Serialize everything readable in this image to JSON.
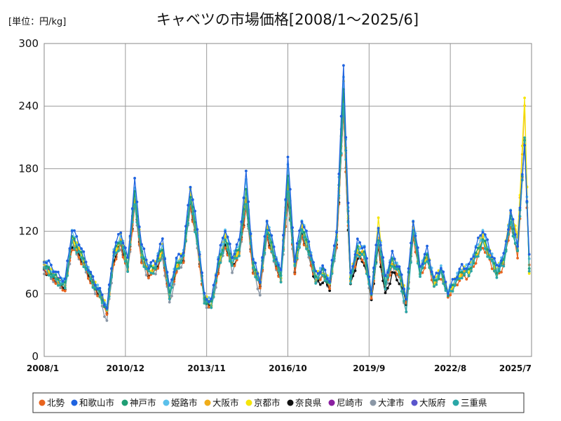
{
  "chart_data": {
    "type": "line",
    "title": "キャベツの市場価格[2008/1～2025/6]",
    "unit_label": "[単位：円/kg]",
    "ylim": [
      0,
      300
    ],
    "yticks": [
      0,
      60,
      120,
      180,
      240,
      300
    ],
    "x_tick_labels": [
      "2008/1",
      "2010/12",
      "2013/11",
      "2016/10",
      "2019/9",
      "2022/8",
      "2025/7"
    ],
    "x_tick_dates": [
      "2008-01",
      "2010-12",
      "2013-11",
      "2016-10",
      "2019-09",
      "2022-08",
      "2025-07"
    ],
    "grid": true,
    "legend_position": "bottom",
    "colors": {
      "北勢": "#e8641e",
      "和歌山市": "#1f63e0",
      "神戸市": "#1f9e74",
      "姫路市": "#5bc0eb",
      "大阪市": "#f0ad1a",
      "京都市": "#f5e50a",
      "奈良県": "#111111",
      "尼崎市": "#8a1fa0",
      "大津市": "#8a97a6",
      "大阪府": "#5a55cc",
      "三重県": "#2aa7a7"
    },
    "baseline": {
      "x": [
        "2008-01",
        "2008-04",
        "2008-07",
        "2008-10",
        "2009-01",
        "2009-04",
        "2009-07",
        "2009-10",
        "2010-01",
        "2010-04",
        "2010-07",
        "2010-10",
        "2011-01",
        "2011-04",
        "2011-07",
        "2011-10",
        "2012-01",
        "2012-04",
        "2012-07",
        "2012-10",
        "2013-01",
        "2013-04",
        "2013-07",
        "2013-10",
        "2014-01",
        "2014-04",
        "2014-07",
        "2014-10",
        "2015-01",
        "2015-04",
        "2015-07",
        "2015-10",
        "2016-01",
        "2016-04",
        "2016-07",
        "2016-10",
        "2017-01",
        "2017-04",
        "2017-07",
        "2017-10",
        "2018-01",
        "2018-04",
        "2018-07",
        "2018-10",
        "2019-01",
        "2019-04",
        "2019-07",
        "2019-10",
        "2020-01",
        "2020-04",
        "2020-07",
        "2020-10",
        "2021-01",
        "2021-04",
        "2021-07",
        "2021-10",
        "2022-01",
        "2022-04",
        "2022-07",
        "2022-10",
        "2023-01",
        "2023-04",
        "2023-07",
        "2023-10",
        "2024-01",
        "2024-04",
        "2024-07",
        "2024-10",
        "2025-01",
        "2025-04",
        "2025-06"
      ],
      "y": [
        85,
        80,
        72,
        68,
        110,
        100,
        85,
        70,
        60,
        45,
        95,
        110,
        85,
        150,
        95,
        80,
        85,
        100,
        60,
        85,
        95,
        150,
        110,
        55,
        50,
        85,
        110,
        88,
        100,
        150,
        85,
        70,
        120,
        95,
        75,
        160,
        85,
        120,
        100,
        75,
        80,
        70,
        110,
        245,
        75,
        100,
        95,
        60,
        110,
        70,
        90,
        80,
        55,
        120,
        80,
        95,
        70,
        80,
        60,
        70,
        80,
        80,
        95,
        110,
        95,
        80,
        90,
        130,
        100,
        210,
        90
      ]
    },
    "series": [
      {
        "name": "北勢",
        "offsets": [
          0,
          -3,
          -2,
          -4,
          -5,
          -4,
          -3,
          -3,
          -2,
          -2,
          -5,
          -4,
          -3,
          -6,
          -3,
          -2,
          -2,
          -4,
          -1,
          -3,
          -2,
          -5,
          -4,
          -2,
          -1,
          -3,
          -4,
          -2,
          -3,
          -8,
          -3,
          -2,
          -5,
          -3,
          -2,
          -6,
          -3,
          -4,
          -3,
          -2,
          -2,
          -2,
          -4,
          -12,
          -2,
          -3,
          -3,
          -2,
          -4,
          -2,
          -3,
          -2,
          -1,
          -4,
          -3,
          -3,
          -2,
          -3,
          -2,
          -2,
          -3,
          -3,
          -3,
          -4,
          -3,
          -3,
          -3,
          -4,
          -3,
          -6,
          -3
        ],
        "start": 0,
        "end": 70
      },
      {
        "name": "和歌山市",
        "offsets": [
          8,
          7,
          6,
          5,
          12,
          10,
          6,
          4,
          3,
          2,
          8,
          10,
          8,
          18,
          12,
          7,
          6,
          12,
          5,
          8,
          6,
          15,
          12,
          3,
          3,
          9,
          13,
          8,
          10,
          25,
          8,
          4,
          12,
          9,
          5,
          30,
          8,
          12,
          10,
          4,
          5,
          3,
          12,
          35,
          3,
          10,
          10,
          3,
          15,
          6,
          8,
          5,
          2,
          12,
          6,
          8,
          4,
          6,
          3,
          5,
          6,
          6,
          10,
          12,
          8,
          6,
          6,
          9,
          8,
          -5,
          5
        ],
        "start": 0,
        "end": 70
      },
      {
        "name": "神戸市",
        "offsets": [
          2,
          1,
          1,
          0,
          4,
          3,
          2,
          1,
          0,
          0,
          3,
          3,
          2,
          6,
          3,
          2,
          2,
          4,
          0,
          2,
          1,
          5,
          3,
          0,
          0,
          2,
          3,
          2,
          3,
          8,
          2,
          1,
          4,
          3,
          1,
          10,
          2,
          4,
          3,
          1,
          1,
          0,
          3,
          14,
          0,
          3,
          3,
          0,
          4,
          1,
          2,
          1,
          0,
          3,
          1,
          2,
          0,
          1,
          0,
          1,
          1,
          1,
          2,
          3,
          2,
          1,
          1,
          2,
          1,
          0,
          -8
        ],
        "start": 0,
        "end": 70
      },
      {
        "name": "姫路市",
        "offsets": [
          5,
          4,
          3,
          3,
          8,
          6,
          4,
          3,
          2,
          1,
          6,
          7,
          5,
          12,
          8,
          5,
          4,
          9,
          3,
          6,
          4,
          12,
          9,
          2,
          2,
          7,
          10,
          6,
          8,
          20,
          6,
          3,
          10,
          7,
          4,
          22,
          6,
          10,
          8,
          3,
          4,
          2,
          9,
          25,
          2,
          8,
          8,
          2,
          12,
          5,
          6,
          4,
          1,
          10,
          5,
          6,
          3,
          4,
          2,
          4,
          5,
          5,
          8,
          9,
          6,
          5,
          5,
          8,
          6,
          -4,
          4
        ],
        "start": 0,
        "end": 70
      },
      {
        "name": "大阪市",
        "offsets": [
          1,
          0,
          0,
          -1,
          2,
          1,
          0,
          0,
          -1,
          -1,
          1,
          1,
          0,
          3,
          1,
          0,
          0,
          2,
          -1,
          1,
          0,
          3,
          2,
          -1,
          -1,
          1,
          2,
          1,
          1,
          4,
          1,
          0,
          2,
          1,
          0,
          5,
          1,
          2,
          1,
          0,
          0,
          0,
          2,
          6,
          0,
          1,
          1,
          0,
          2,
          0,
          1,
          0,
          -1,
          2,
          0,
          1,
          0,
          0,
          -1,
          0,
          0,
          0,
          1,
          2,
          1,
          0,
          3,
          8,
          12,
          28,
          -6
        ],
        "start": 0,
        "end": 70
      },
      {
        "name": "京都市",
        "offsets": [
          3,
          2,
          2,
          1,
          5,
          4,
          3,
          2,
          1,
          1,
          4,
          5,
          3,
          9,
          5,
          3,
          3,
          6,
          2,
          4,
          3,
          8,
          6,
          1,
          1,
          4,
          6,
          4,
          5,
          12,
          4,
          2,
          6,
          4,
          2,
          14,
          4,
          6,
          5,
          2,
          2,
          1,
          5,
          16,
          1,
          5,
          5,
          1,
          20,
          3,
          4,
          3,
          1,
          6,
          3,
          4,
          2,
          3,
          1,
          2,
          3,
          3,
          5,
          6,
          4,
          3,
          4,
          9,
          14,
          35,
          -8
        ],
        "start": 0,
        "end": 70
      },
      {
        "name": "奈良県",
        "offsets": [
          -2,
          -2,
          -1,
          -2,
          -3,
          -2,
          -1,
          -1,
          -1,
          -1,
          -2,
          -2,
          -1,
          -4,
          -2,
          -1,
          -1,
          -2,
          0,
          -1,
          -1,
          -3,
          -2,
          -1,
          0,
          -2,
          -2,
          -1,
          -2,
          -6,
          -2,
          -1,
          -3,
          -2,
          -1,
          -8,
          -2,
          -3,
          -2,
          -5,
          -8,
          -4,
          -2,
          -10,
          -8,
          -6,
          -5,
          -4,
          -6,
          -12,
          -10,
          -8,
          -3,
          -6,
          -4,
          -3,
          -6,
          -5,
          -3,
          -4,
          -4,
          -5,
          -6,
          -7,
          -5,
          -4,
          -3,
          -5,
          -4,
          -6,
          -3
        ],
        "start": 0,
        "end": 53
      },
      {
        "name": "尼崎市",
        "offsets": [
          0,
          -1,
          0,
          -1,
          2,
          1,
          0,
          0,
          -1,
          -1,
          1,
          1,
          0,
          3,
          1,
          0,
          0,
          2,
          -1,
          1,
          0,
          3,
          2,
          -1,
          -1,
          1,
          2,
          1,
          1,
          4,
          1,
          0,
          2,
          1,
          0,
          5,
          1,
          2,
          1,
          0,
          0,
          0,
          2,
          6,
          0,
          1,
          1,
          0,
          2,
          0,
          1,
          0,
          -1,
          2,
          0,
          1,
          0,
          0,
          -1,
          0,
          0,
          0,
          1,
          2,
          1,
          0,
          0,
          1,
          0,
          0,
          0
        ],
        "start": 0,
        "end": 8
      },
      {
        "name": "大津市",
        "offsets": [
          -3,
          -4,
          -2,
          -3,
          -5,
          -4,
          -2,
          -4,
          -3,
          -12,
          -3,
          -5,
          -3,
          -4,
          -5,
          -4,
          -3,
          -5,
          -10,
          -4,
          -3,
          -6,
          -4,
          -3,
          -5,
          -4,
          -3,
          -5,
          -3,
          -5,
          -3,
          -10,
          -4,
          -3,
          -2,
          -6,
          -3,
          -4,
          -3,
          -2,
          -3,
          -3,
          -4,
          -8,
          -3,
          -3,
          -3,
          -4,
          -3,
          -3,
          -5,
          -3,
          -12,
          -4,
          -3,
          -3,
          -4,
          -3,
          -2,
          -3,
          -3,
          -3,
          -3,
          -4,
          -3,
          -3,
          -3,
          -4,
          -3,
          -5,
          -3
        ],
        "start": 0,
        "end": 53
      },
      {
        "name": "大阪府",
        "offsets": [
          0,
          0,
          0,
          0,
          1,
          0,
          0,
          0,
          0,
          0,
          1,
          1,
          0,
          2,
          1,
          0,
          0,
          1,
          0,
          1,
          0,
          2,
          1,
          0,
          0,
          1,
          1,
          1,
          1,
          3,
          1,
          0,
          1,
          1,
          0,
          3,
          1,
          1,
          1,
          0,
          0,
          0,
          1,
          4,
          0,
          1,
          1,
          0,
          1,
          0,
          1,
          0,
          0,
          1,
          0,
          1,
          0,
          0,
          0,
          0,
          0,
          0,
          1,
          1,
          1,
          0,
          0,
          0,
          0,
          0,
          0
        ],
        "start": 0,
        "end": 0
      },
      {
        "name": "三重県",
        "offsets": [
          -1,
          -2,
          -1,
          -2,
          -1,
          -2,
          -1,
          -1,
          -1,
          -2,
          -1,
          -1,
          -1,
          -2,
          -1,
          -1,
          -1,
          -1,
          -2,
          -1,
          -1,
          -2,
          -1,
          -1,
          -2,
          -1,
          -1,
          -1,
          -1,
          -2,
          -1,
          -1,
          -1,
          -1,
          -1,
          -2,
          -1,
          -1,
          -1,
          -2,
          -1,
          -2,
          -1,
          -3,
          -2,
          -1,
          -1,
          -2,
          -1,
          -3,
          -1,
          -2,
          -15,
          -1,
          -2,
          -1,
          -2,
          -1,
          -2,
          -1,
          -2,
          -1,
          -1,
          -2,
          -1,
          -2,
          -1,
          -2,
          -1,
          -2,
          -6
        ],
        "start": 0,
        "end": 70
      }
    ]
  }
}
